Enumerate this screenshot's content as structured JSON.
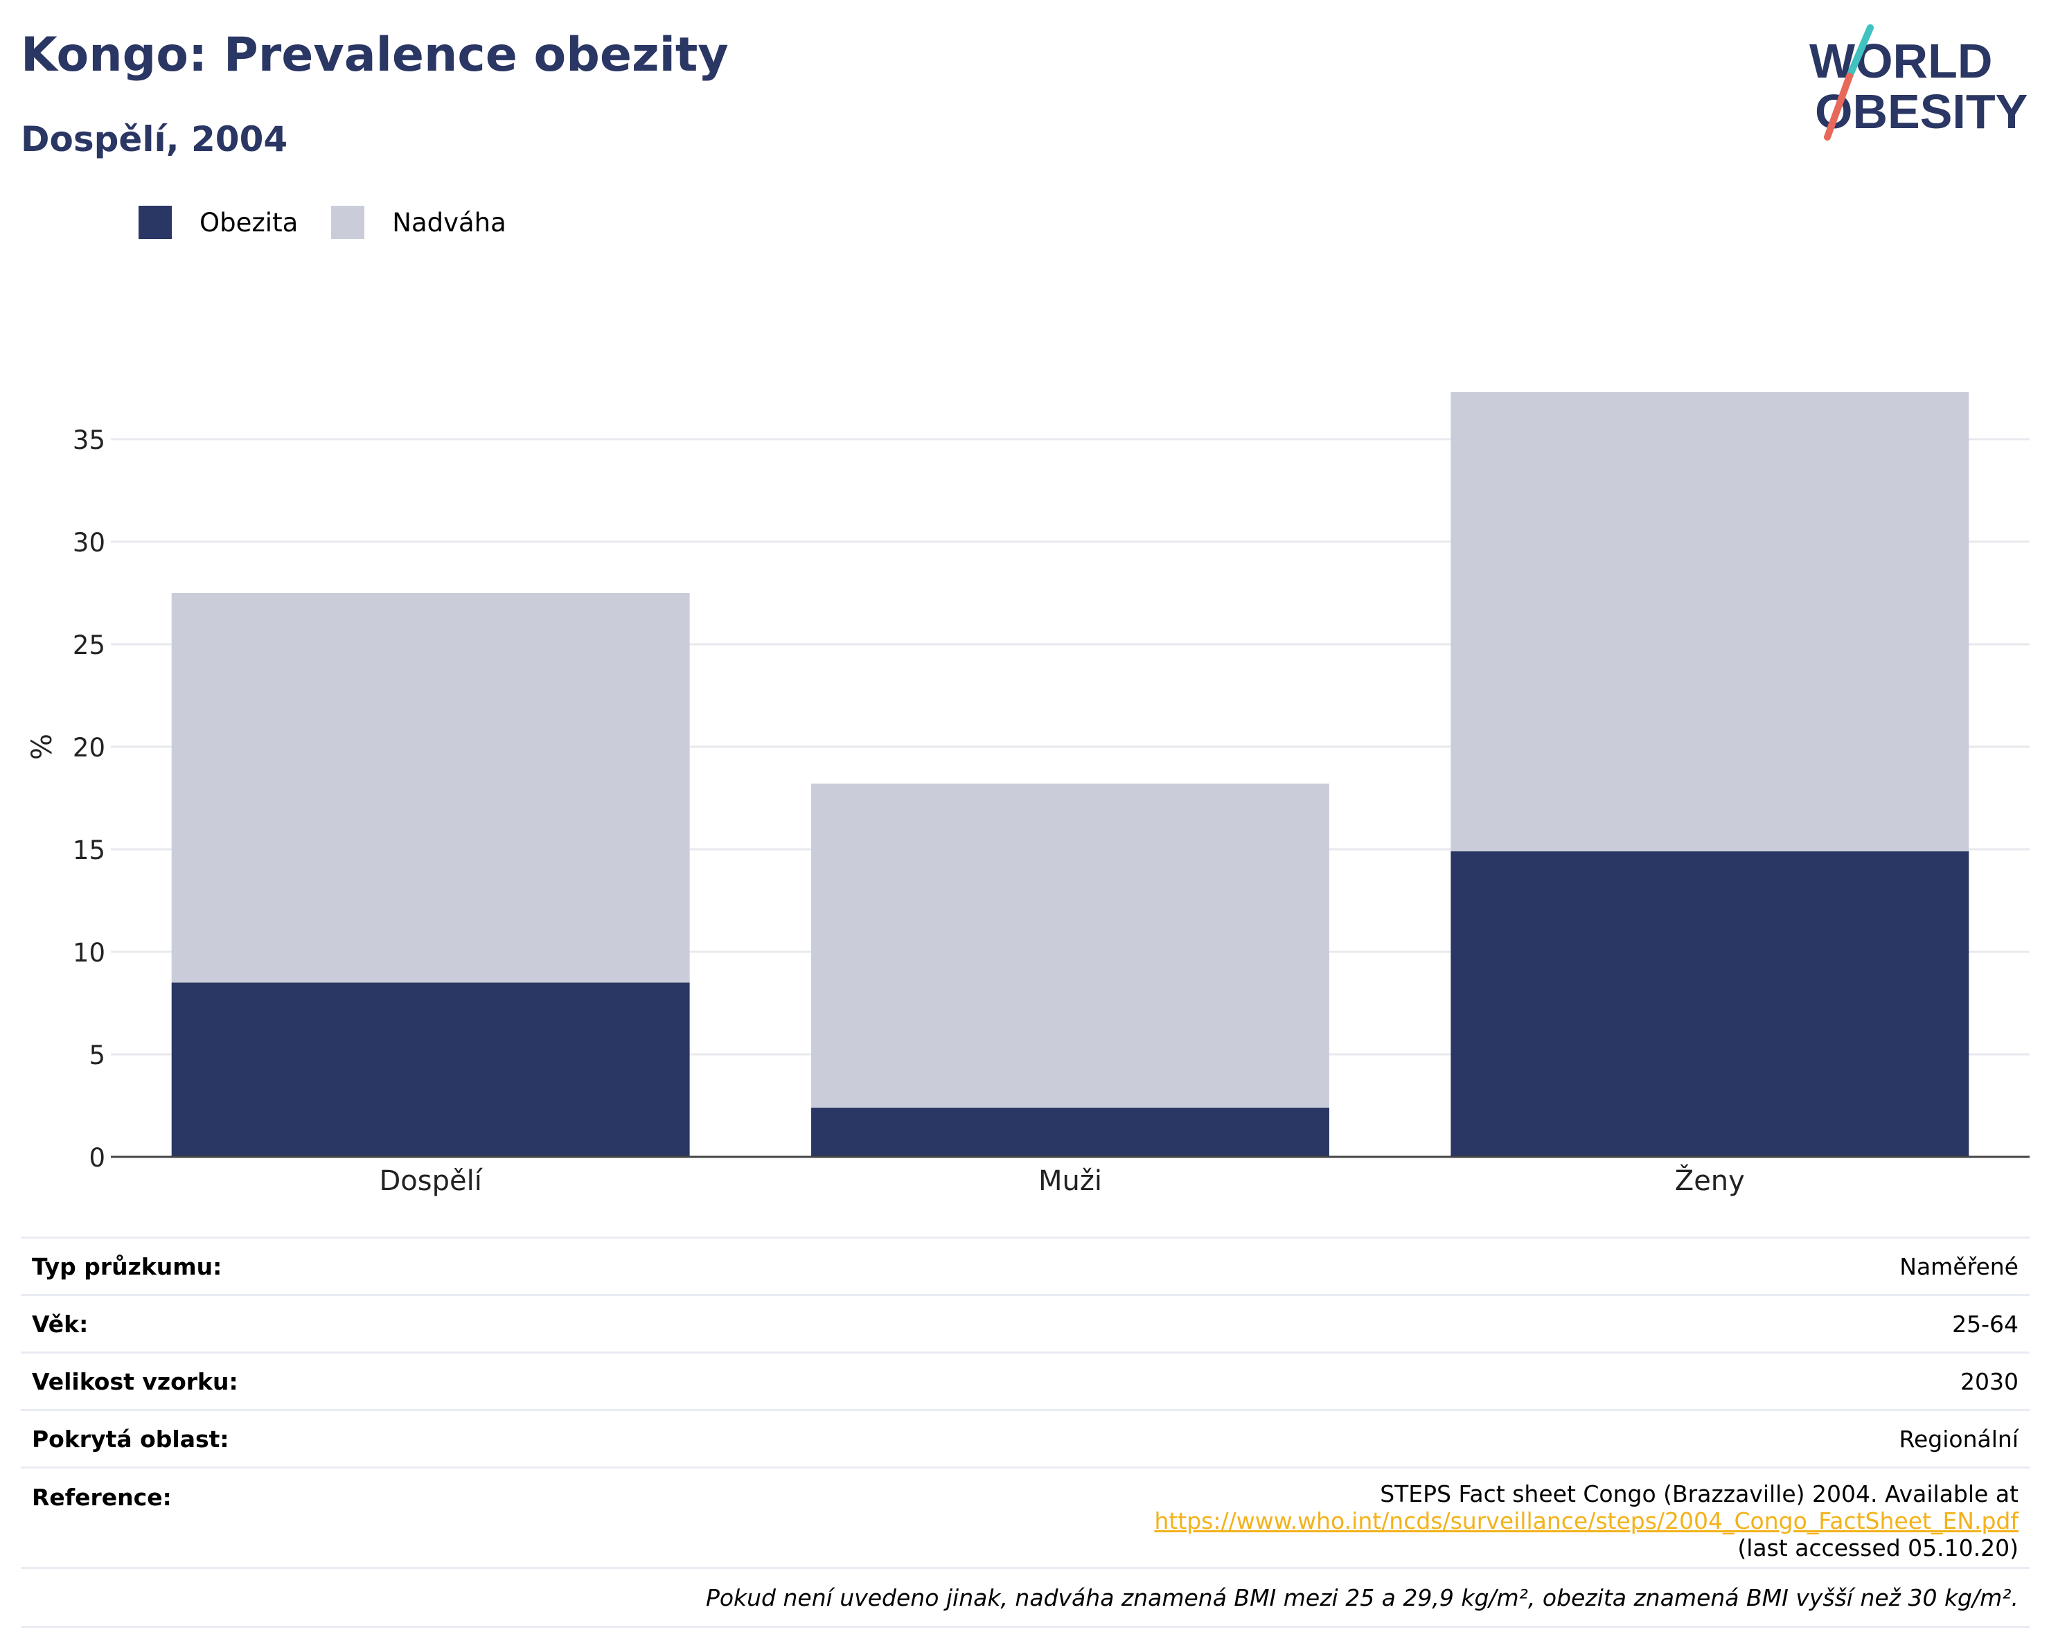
{
  "title": "Kongo: Prevalence obezity",
  "subtitle": "Dospělí, 2004",
  "logo": {
    "line1": "WORLD",
    "line2": "OBESITY"
  },
  "colors": {
    "obesity": "#2a3663",
    "overweight": "#cacdd9",
    "accent_teal": "#3fc2c0",
    "accent_red": "#e8685a",
    "link": "#f3b21a"
  },
  "legend": [
    {
      "label": "Obezita",
      "color": "#2a3663"
    },
    {
      "label": "Nadváha",
      "color": "#cacdd9"
    }
  ],
  "chart_data": {
    "type": "bar",
    "stacked": true,
    "categories": [
      "Dospělí",
      "Muži",
      "Ženy"
    ],
    "series": [
      {
        "name": "Obezita",
        "values": [
          8.5,
          2.4,
          14.9
        ]
      },
      {
        "name": "Nadváha",
        "values": [
          19.0,
          15.8,
          22.4
        ]
      }
    ],
    "ylabel": "%",
    "ylim": [
      0,
      40
    ],
    "yticks": [
      0,
      5,
      10,
      15,
      20,
      25,
      30,
      35
    ],
    "grid": true,
    "legend_position": "top-left"
  },
  "info": {
    "survey_type": {
      "label": "Typ průzkumu:",
      "value": "Naměřené"
    },
    "age": {
      "label": "Věk:",
      "value": "25-64"
    },
    "sample": {
      "label": "Velikost vzorku:",
      "value": "2030"
    },
    "area": {
      "label": "Pokrytá oblast:",
      "value": "Regionální"
    },
    "reference": {
      "label": "Reference:",
      "text": "STEPS Fact sheet Congo (Brazzaville) 2004. Available at ",
      "link": "https://www.who.int/ncds/surveillance/steps/2004_Congo_FactSheet_EN.pdf",
      "accessed": "(last accessed 05.10.20)"
    },
    "footnote": "Pokud není uvedeno jinak, nadváha znamená BMI mezi 25 a 29,9 kg/m², obezita znamená BMI vyšší než 30 kg/m²."
  }
}
